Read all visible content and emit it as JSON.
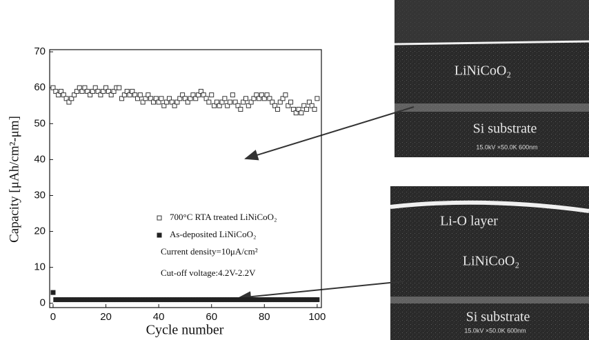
{
  "chart_data": {
    "type": "scatter",
    "x_label": "Cycle number",
    "y_label": "Capacity [μAh/cm²-μm]",
    "xlim": [
      -1.3,
      101.6
    ],
    "ylim": [
      -1.2,
      70.6
    ],
    "xticks": [
      0,
      20,
      40,
      60,
      80,
      100
    ],
    "yticks": [
      0,
      10,
      20,
      30,
      40,
      50,
      60,
      70
    ],
    "x": [
      0,
      1,
      2,
      3,
      4,
      5,
      6,
      7,
      8,
      9,
      10,
      11,
      12,
      13,
      14,
      15,
      16,
      17,
      18,
      19,
      20,
      21,
      22,
      23,
      24,
      25,
      26,
      27,
      28,
      29,
      30,
      31,
      32,
      33,
      34,
      35,
      36,
      37,
      38,
      39,
      40,
      41,
      42,
      43,
      44,
      45,
      46,
      47,
      48,
      49,
      50,
      51,
      52,
      53,
      54,
      55,
      56,
      57,
      58,
      59,
      60,
      61,
      62,
      63,
      64,
      65,
      66,
      67,
      68,
      69,
      70,
      71,
      72,
      73,
      74,
      75,
      76,
      77,
      78,
      79,
      80,
      81,
      82,
      83,
      84,
      85,
      86,
      87,
      88,
      89,
      90,
      91,
      92,
      93,
      94,
      95,
      96,
      97,
      98,
      99,
      100
    ],
    "series": [
      {
        "name": "700°C RTA treated LiNiCoO₂",
        "color": "#333333",
        "marker": "open-square",
        "values": [
          60,
          59,
          58,
          59,
          58,
          57,
          56,
          57,
          58,
          59,
          60,
          59,
          60,
          59,
          58,
          59,
          60,
          59,
          58,
          59,
          60,
          59,
          58,
          59,
          60,
          60,
          57,
          58,
          59,
          58,
          59,
          58,
          57,
          58,
          56,
          57,
          58,
          57,
          56,
          57,
          56,
          57,
          55,
          56,
          57,
          56,
          55,
          56,
          57,
          58,
          57,
          56,
          57,
          58,
          57,
          58,
          59,
          58,
          57,
          56,
          58,
          55,
          56,
          55,
          56,
          57,
          55,
          56,
          58,
          56,
          55,
          54,
          56,
          57,
          55,
          56,
          57,
          58,
          57,
          58,
          57,
          58,
          57,
          56,
          55,
          54,
          56,
          57,
          58,
          55,
          56,
          54,
          53,
          54,
          53,
          55,
          54,
          56,
          55,
          54,
          57
        ]
      },
      {
        "name": "As-deposited LiNiCoO₂",
        "color": "#222222",
        "marker": "filled-square",
        "values": [
          3,
          1,
          1,
          1,
          1,
          1,
          1,
          1,
          1,
          1,
          1,
          1,
          1,
          1,
          1,
          1,
          1,
          1,
          1,
          1,
          1,
          1,
          1,
          1,
          1,
          1,
          1,
          1,
          1,
          1,
          1,
          1,
          1,
          1,
          1,
          1,
          1,
          1,
          1,
          1,
          1,
          1,
          1,
          1,
          1,
          1,
          1,
          1,
          1,
          1,
          1,
          1,
          1,
          1,
          1,
          1,
          1,
          1,
          1,
          1,
          1,
          1,
          1,
          1,
          1,
          1,
          1,
          1,
          1,
          1,
          1,
          1,
          1,
          1,
          1,
          1,
          1,
          1,
          1,
          1,
          1,
          1,
          1,
          1,
          1,
          1,
          1,
          1,
          1,
          1,
          1,
          1,
          1,
          1,
          1,
          1,
          1,
          1,
          1,
          1,
          1
        ]
      }
    ],
    "annotations": [
      "Current density=10μA/cm²",
      "Cut-off voltage:4.2V-2.2V"
    ],
    "images": [
      {
        "labels": [
          "LiNiCoO₂",
          "Si substrate"
        ],
        "scale_bar": "15.0kV ×50.0K 600nm"
      },
      {
        "labels": [
          "Li-O layer",
          "LiNiCoO₂",
          "Si substrate"
        ],
        "scale_bar": "15.0kV ×50.0K 600nm"
      }
    ]
  }
}
